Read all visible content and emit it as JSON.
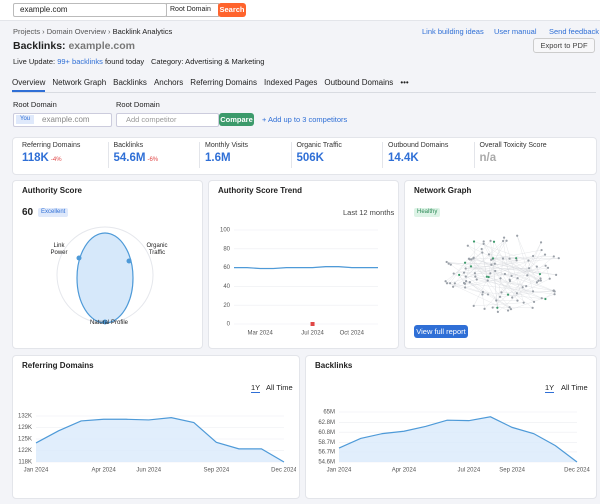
{
  "search": {
    "query": "example.com",
    "scope": "Root Domain",
    "button": "Search"
  },
  "breadcrumb": [
    "Projects",
    "Domain Overview",
    "Backlink Analytics"
  ],
  "header_links": [
    "Link building ideas",
    "User manual",
    "Send feedback"
  ],
  "title": {
    "label": "Backlinks:",
    "domain": "example.com"
  },
  "export": "Export to PDF",
  "live_update": {
    "label": "Live Update:",
    "link": "99+ backlinks",
    "suffix": "found today"
  },
  "category": "Category: Advertising & Marketing",
  "tabs": [
    "Overview",
    "Network Graph",
    "Backlinks",
    "Anchors",
    "Referring Domains",
    "Indexed Pages",
    "Outbound Domains",
    "•••"
  ],
  "compare": {
    "scope_1": "Root Domain",
    "scope_2": "Root Domain",
    "you": "You",
    "domain": "example.com",
    "placeholder": "Add competitor",
    "button": "Compare",
    "add": "+ Add up to 3 competitors"
  },
  "metrics": [
    {
      "label": "Referring Domains",
      "value": "118K",
      "change": "-4%"
    },
    {
      "label": "Backlinks",
      "value": "54.6M",
      "change": "-6%"
    },
    {
      "label": "Monthly Visits",
      "value": "1.6M"
    },
    {
      "label": "Organic Traffic",
      "value": "506K"
    },
    {
      "label": "Outbound Domains",
      "value": "14.4K"
    },
    {
      "label": "Overall Toxicity Score",
      "value": "n/a"
    }
  ],
  "authority": {
    "title": "Authority Score",
    "score": "60",
    "badge": "Excellent",
    "labels": [
      "Link Power",
      "Organic Traffic",
      "Natural Profile"
    ]
  },
  "network": {
    "title": "Network Graph",
    "badge": "Healthy",
    "button": "View full report"
  },
  "chart_data": [
    {
      "type": "line",
      "title": "Authority Score Trend",
      "subtitle": "Last 12 months",
      "color": "#4e9ad8",
      "grid": true,
      "categories": [
        null,
        null,
        "Mar 2024",
        null,
        null,
        null,
        "Jul 2024",
        null,
        null,
        "Oct 2024",
        null,
        null
      ],
      "values": [
        60,
        60,
        59,
        59,
        60,
        60,
        60,
        61,
        61,
        60,
        60,
        60
      ],
      "ylim": [
        0,
        100
      ],
      "yticks": [
        0,
        20,
        40,
        60,
        80,
        100
      ]
    },
    {
      "type": "area",
      "title": "Referring Domains",
      "period_options": [
        "1Y",
        "All Time"
      ],
      "color": "#4e9ad8",
      "grid": true,
      "categories": [
        "Jan 2024",
        null,
        null,
        "Apr 2024",
        null,
        "Jun 2024",
        null,
        null,
        "Sep 2024",
        null,
        null,
        "Dec 2024"
      ],
      "values": [
        123800,
        127500,
        130500,
        131000,
        131000,
        130800,
        131500,
        130000,
        124000,
        122000,
        122000,
        118000
      ],
      "ylim": [
        118000,
        132000
      ],
      "yticks": [
        {
          "value": 118000,
          "label": "118K"
        },
        {
          "value": 121500,
          "label": "122K"
        },
        {
          "value": 125000,
          "label": "125K"
        },
        {
          "value": 128500,
          "label": "129K"
        },
        {
          "value": 132000,
          "label": "132K"
        }
      ]
    },
    {
      "type": "area",
      "title": "Backlinks",
      "period_options": [
        "1Y",
        "All Time"
      ],
      "color": "#4e9ad8",
      "grid": true,
      "categories": [
        "Jan 2024",
        null,
        null,
        "Apr 2024",
        null,
        null,
        "Jul 2024",
        null,
        "Sep 2024",
        null,
        null,
        "Dec 2024"
      ],
      "values": [
        57500000,
        59500000,
        60500000,
        61000000,
        62000000,
        63300000,
        63200000,
        64000000,
        61800000,
        60500000,
        58000000,
        54600000
      ],
      "ylim": [
        54600000,
        65000000
      ],
      "yticks": [
        {
          "value": 54600000,
          "label": "54.6M"
        },
        {
          "value": 56700000,
          "label": "56.7M"
        },
        {
          "value": 58700000,
          "label": "58.7M"
        },
        {
          "value": 60800000,
          "label": "60.8M"
        },
        {
          "value": 62800000,
          "label": "62.8M"
        },
        {
          "value": 65000000,
          "label": "65M"
        }
      ]
    }
  ]
}
